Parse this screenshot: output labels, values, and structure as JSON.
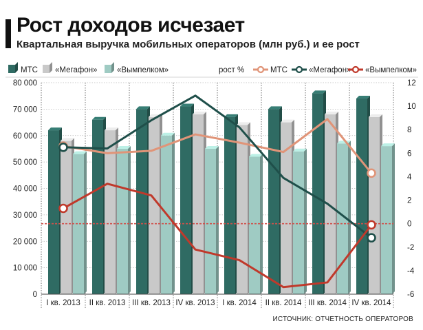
{
  "title": "Рост доходов исчезает",
  "subtitle": "Квартальная выручка мобильных операторов (млн руб.) и ее рост",
  "source": "ИСТОЧНИК: ОТЧЕТНОСТЬ ОПЕРАТОРОВ",
  "legend_left": {
    "mts": "МТС",
    "megafon": "«Мегафон»",
    "vympelcom": "«Вымпелком»"
  },
  "legend_right": {
    "label": "рост %",
    "mts": "МТС",
    "megafon": "«Мегафон»",
    "vympelcom": "«Вымпелком»"
  },
  "colors": {
    "mts_bar": "#2f6b63",
    "megafon_bar": "#c9c9c9",
    "vympelcom_bar": "#9fcbc3",
    "mts_line": "#e09478",
    "megafon_line": "#1f4f4a",
    "vympelcom_line": "#c0392b",
    "zero_line": "#d0504a",
    "grid": "#b8b8b8"
  },
  "chart_data": {
    "type": "bar",
    "categories": [
      "I кв. 2013",
      "II кв. 2013",
      "III кв. 2013",
      "IV кв. 2013",
      "I кв. 2014",
      "II кв. 2014",
      "III кв. 2014",
      "IV кв. 2014"
    ],
    "series": [
      {
        "name": "МТС",
        "values": [
          62000,
          66000,
          70000,
          71000,
          67000,
          70000,
          76000,
          74000
        ]
      },
      {
        "name": "«Мегафон»",
        "values": [
          58000,
          62000,
          67000,
          68000,
          64000,
          65000,
          68000,
          67000
        ]
      },
      {
        "name": "«Вымпелком»",
        "values": [
          53000,
          55000,
          60000,
          55000,
          52000,
          54000,
          57000,
          56000
        ]
      }
    ],
    "ylim": [
      0,
      80000
    ],
    "yticks": [
      "0",
      "10 000",
      "20 000",
      "30 000",
      "40 000",
      "50 000",
      "60 000",
      "70 000",
      "80 000"
    ],
    "growth": {
      "label": "рост %",
      "ylim": [
        -6,
        12
      ],
      "yticks": [
        "-6",
        "-4",
        "-2",
        "0",
        "2",
        "4",
        "6",
        "8",
        "10",
        "12"
      ],
      "series": [
        {
          "name": "МТС",
          "values": [
            6.6,
            6.0,
            6.2,
            7.6,
            6.9,
            6.1,
            8.9,
            4.3
          ]
        },
        {
          "name": "«Мегафон»",
          "values": [
            6.5,
            6.4,
            8.8,
            10.9,
            8.2,
            3.9,
            1.7,
            -1.2
          ]
        },
        {
          "name": "«Вымпелком»",
          "values": [
            1.3,
            3.4,
            2.4,
            -2.2,
            -3.1,
            -5.4,
            -5.0,
            -0.1
          ]
        }
      ]
    },
    "grid": true
  }
}
